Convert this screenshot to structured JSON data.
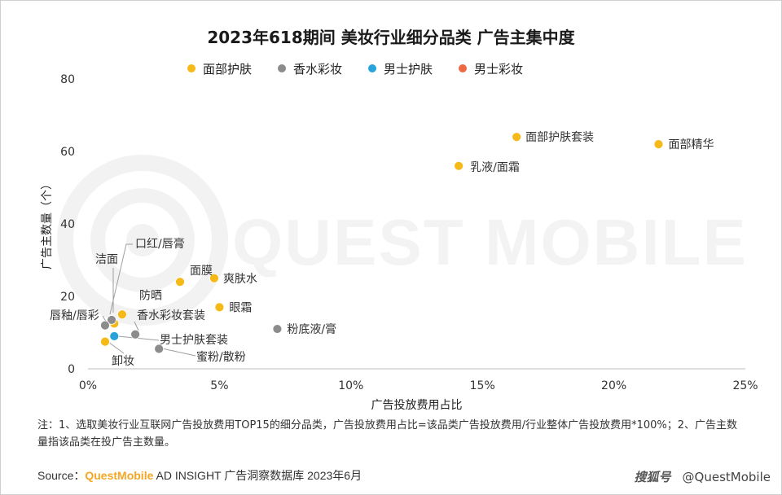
{
  "title": "2023年618期间 美妆行业细分品类 广告主集中度",
  "legend": [
    {
      "label": "面部护肤",
      "color": "#f5b918"
    },
    {
      "label": "香水彩妆",
      "color": "#8c8c8c"
    },
    {
      "label": "男士护肤",
      "color": "#27a3d9"
    },
    {
      "label": "男士彩妆",
      "color": "#ee6842"
    }
  ],
  "watermark": "QUEST MOBILE",
  "chart_data": {
    "type": "scatter",
    "title": "2023年618期间 美妆行业细分品类 广告主集中度",
    "xlabel": "广告投放费用占比",
    "ylabel": "广告主数量（个）",
    "xlim": [
      0,
      25
    ],
    "ylim": [
      0,
      80
    ],
    "x_ticks": [
      "0%",
      "5%",
      "10%",
      "15%",
      "20%",
      "25%"
    ],
    "y_ticks": [
      "0",
      "20",
      "40",
      "60",
      "80"
    ],
    "x_unit": "%",
    "grid": false,
    "legend_position": "top",
    "points": [
      {
        "label": "面部精华",
        "x": 21.7,
        "y": 62,
        "group": "面部护肤"
      },
      {
        "label": "面部护肤套装",
        "x": 16.3,
        "y": 64,
        "group": "面部护肤"
      },
      {
        "label": "乳液/面霜",
        "x": 14.1,
        "y": 56,
        "group": "面部护肤"
      },
      {
        "label": "爽肤水",
        "x": 4.8,
        "y": 25,
        "group": "面部护肤"
      },
      {
        "label": "面膜",
        "x": 3.5,
        "y": 24,
        "group": "面部护肤"
      },
      {
        "label": "眼霜",
        "x": 5.0,
        "y": 17,
        "group": "面部护肤"
      },
      {
        "label": "防晒",
        "x": 1.3,
        "y": 15,
        "group": "面部护肤"
      },
      {
        "label": "洁面",
        "x": 1.0,
        "y": 12.5,
        "group": "面部护肤"
      },
      {
        "label": "卸妆",
        "x": 0.65,
        "y": 7.5,
        "group": "面部护肤"
      },
      {
        "label": "粉底液/膏",
        "x": 7.2,
        "y": 11,
        "group": "香水彩妆"
      },
      {
        "label": "香水彩妆套装",
        "x": 1.8,
        "y": 9.5,
        "group": "香水彩妆"
      },
      {
        "label": "口红/唇膏",
        "x": 0.9,
        "y": 13.5,
        "group": "香水彩妆"
      },
      {
        "label": "唇釉/唇彩",
        "x": 0.65,
        "y": 12,
        "group": "香水彩妆"
      },
      {
        "label": "蜜粉/散粉",
        "x": 2.7,
        "y": 5.5,
        "group": "香水彩妆"
      },
      {
        "label": "男士护肤套装",
        "x": 1.0,
        "y": 9,
        "group": "男士护肤"
      }
    ]
  },
  "note": "注：1、选取美妆行业互联网广告投放费用TOP15的细分品类，广告投放费用占比=该品类广告投放费用/行业整体广告投放费用*100%；2、广告主数量指该品类在投广告主数量。",
  "source": {
    "prefix": "Source：",
    "brand": "QuestMobile",
    "rest": " AD INSIGHT 广告洞察数据库 2023年6月"
  },
  "credit": {
    "site": "搜狐号",
    "handle": "@QuestMobile"
  }
}
